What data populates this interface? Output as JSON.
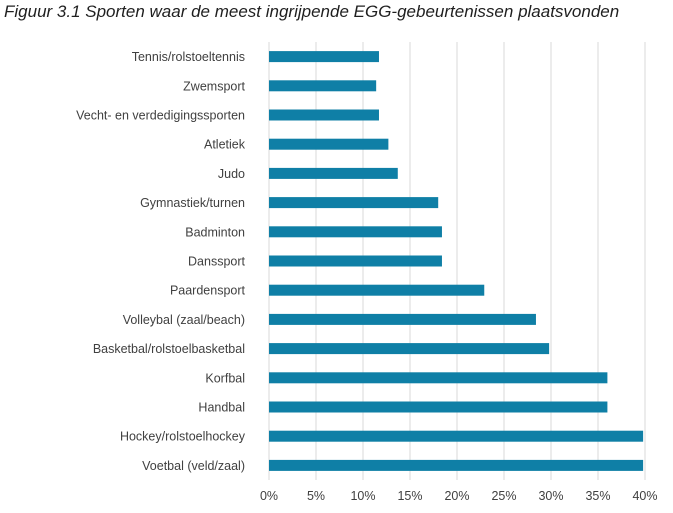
{
  "figure_title": "Figuur 3.1 Sporten waar de meest ingrijpende EGG-gebeurtenissen plaatsvonden",
  "chart_data": {
    "type": "bar",
    "orientation": "horizontal",
    "title": "Figuur 3.1 Sporten waar de meest ingrijpende EGG-gebeurtenissen plaatsvonden",
    "categories": [
      "Tennis/rolstoeltennis",
      "Zwemsport",
      "Vecht- en verdedigingssporten",
      "Atletiek",
      "Judo",
      "Gymnastiek/turnen",
      "Badminton",
      "Danssport",
      "Paardensport",
      "Volleybal (zaal/beach)",
      "Basketbal/rolstoelbasketbal",
      "Korfbal",
      "Handbal",
      "Hockey/rolstoelhockey",
      "Voetbal (veld/zaal)"
    ],
    "values": [
      11.7,
      11.4,
      11.7,
      12.7,
      13.7,
      18.0,
      18.4,
      18.4,
      22.9,
      28.4,
      29.8,
      36.0,
      36.0,
      39.8,
      39.8
    ],
    "value_unit": "%",
    "xlim": [
      0,
      40
    ],
    "xticks": [
      "0%",
      "5%",
      "10%",
      "15%",
      "20%",
      "25%",
      "30%",
      "35%",
      "40%"
    ],
    "xtick_values": [
      0,
      5,
      10,
      15,
      20,
      25,
      30,
      35,
      40
    ],
    "grid": true,
    "legend": "none",
    "bar_color": "#0f7fa6",
    "grid_color": "#d9d9d9"
  }
}
